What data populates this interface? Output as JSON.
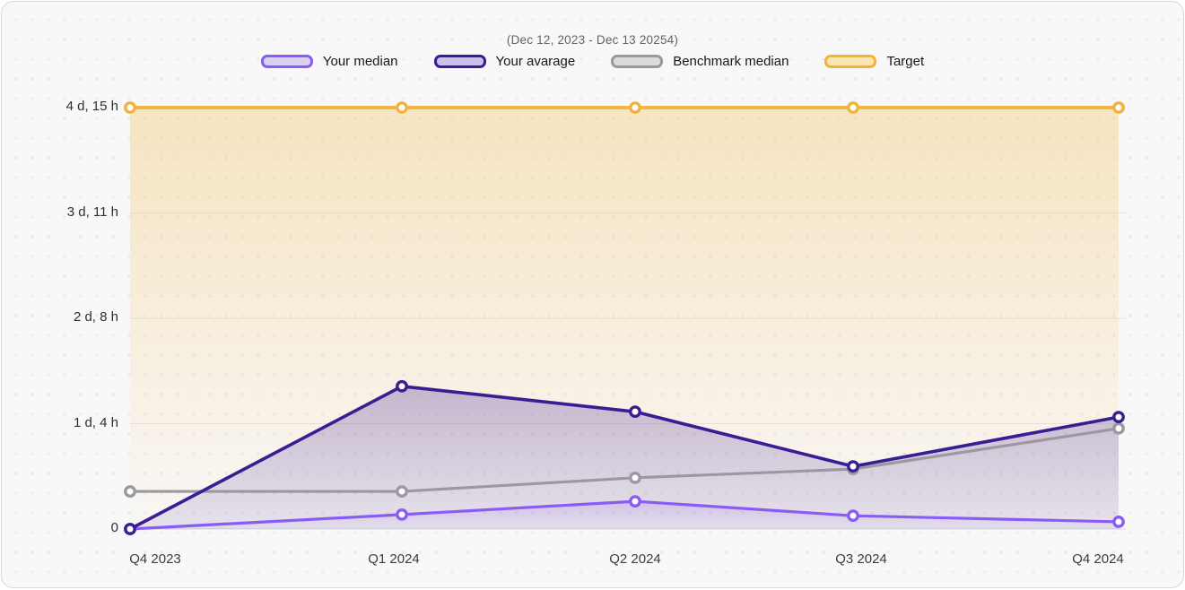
{
  "header": {
    "title": "(Dec 12, 2023 - Dec 13 20254)"
  },
  "legend": [
    {
      "label": "Your median",
      "swatch_border": "#8a5cf6",
      "swatch_fill": "#dcd0fa"
    },
    {
      "label": "Your avarage",
      "swatch_border": "#3a1d92",
      "swatch_fill": "#cdc0ec"
    },
    {
      "label": "Benchmark median",
      "swatch_border": "#9b999f",
      "swatch_fill": "#dbdbdd"
    },
    {
      "label": "Target",
      "swatch_border": "#f2b33c",
      "swatch_fill": "#fae5af"
    }
  ],
  "chart_data": {
    "type": "line",
    "title": "(Dec 12, 2023 - Dec 13 20254)",
    "categories": [
      "Q4 2023",
      "Q1 2024",
      "Q2 2024",
      "Q3 2024",
      "Q4 2024"
    ],
    "unit": "hours",
    "ylim": [
      0,
      111
    ],
    "grid": true,
    "legend_position": "top",
    "y_ticks": [
      {
        "label": "4 d, 15 h",
        "hours": 111
      },
      {
        "label": "3 d, 11 h",
        "hours": 83.25
      },
      {
        "label": "2 d, 8 h",
        "hours": 55.5
      },
      {
        "label": "1 d, 4 h",
        "hours": 27.75
      },
      {
        "label": "0",
        "hours": 0
      }
    ],
    "series": [
      {
        "name": "Your median",
        "color": "#8a5cf6",
        "area": true,
        "values_hours": [
          0,
          3.8,
          7.3,
          3.5,
          1.9
        ]
      },
      {
        "name": "Your avarage",
        "color": "#3a1d92",
        "area": true,
        "values_hours": [
          0,
          37.6,
          30.9,
          16.5,
          29.5
        ]
      },
      {
        "name": "Benchmark median",
        "color": "#9b999f",
        "area": false,
        "values_hours": [
          9.9,
          9.9,
          13.5,
          15.8,
          26.5
        ]
      },
      {
        "name": "Target",
        "color": "#f2b33c",
        "area": true,
        "values_hours": [
          111,
          111,
          111,
          111,
          111
        ]
      }
    ]
  }
}
